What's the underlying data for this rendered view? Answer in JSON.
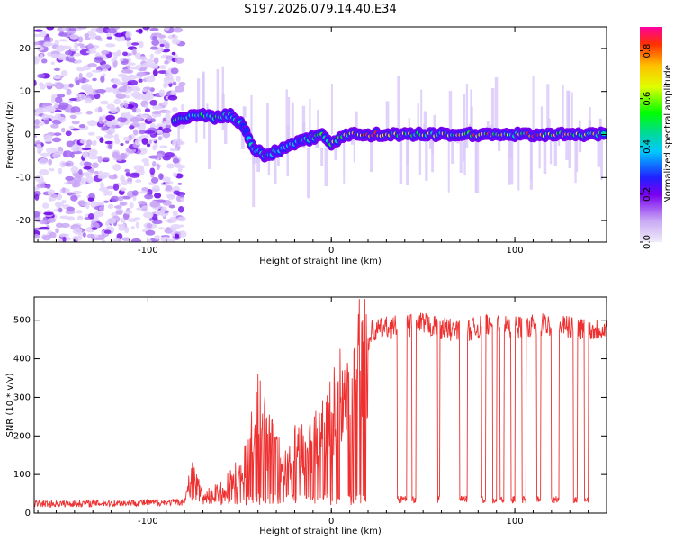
{
  "title": "S197.2026.079.14.40.E34",
  "chart_data": [
    {
      "type": "heatmap",
      "xlabel": "Height of straight line (km)",
      "ylabel": "Frequency (Hz)",
      "xlim": [
        -162,
        150
      ],
      "ylim": [
        -25,
        25
      ],
      "xticks": [
        -100,
        0,
        100
      ],
      "yticks": [
        -20,
        -10,
        0,
        10,
        20
      ],
      "colorbar": {
        "label": "Normalized spectral amplitude",
        "range": [
          0,
          0.9
        ],
        "ticks": [
          0,
          0.2,
          0.4,
          0.6,
          0.8
        ],
        "tick_labels": [
          "0.0",
          "0.2",
          "0.4",
          "0.6",
          "0.8"
        ],
        "stops": [
          "#e6dcf7",
          "#7a00f0",
          "#2020ff",
          "#00c8ff",
          "#00d8a0",
          "#00ff00",
          "#e0ff00",
          "#ffc000",
          "#ff3000",
          "#ff00a0"
        ]
      },
      "noise_region_x": [
        -162,
        -85
      ],
      "ridge": [
        {
          "x": -85,
          "f": 3,
          "amp": 0.5
        },
        {
          "x": -78,
          "f": 4,
          "amp": 0.45
        },
        {
          "x": -70,
          "f": 4.5,
          "amp": 0.55
        },
        {
          "x": -62,
          "f": 4,
          "amp": 0.5
        },
        {
          "x": -55,
          "f": 4.5,
          "amp": 0.45
        },
        {
          "x": -48,
          "f": 2,
          "amp": 0.35
        },
        {
          "x": -42,
          "f": -3.5,
          "amp": 0.4
        },
        {
          "x": -35,
          "f": -5,
          "amp": 0.4
        },
        {
          "x": -28,
          "f": -3.5,
          "amp": 0.4
        },
        {
          "x": -20,
          "f": -2,
          "amp": 0.4
        },
        {
          "x": -12,
          "f": -1,
          "amp": 0.4
        },
        {
          "x": -5,
          "f": 0,
          "amp": 0.5
        },
        {
          "x": 0,
          "f": -2,
          "amp": 0.55
        },
        {
          "x": 8,
          "f": 0,
          "amp": 0.55
        },
        {
          "x": 20,
          "f": 0,
          "amp": 0.8
        },
        {
          "x": 40,
          "f": 0,
          "amp": 0.6
        },
        {
          "x": 60,
          "f": 0,
          "amp": 0.6
        },
        {
          "x": 80,
          "f": 0,
          "amp": 0.75
        },
        {
          "x": 100,
          "f": 0,
          "amp": 0.6
        },
        {
          "x": 112,
          "f": 0,
          "amp": 0.8
        },
        {
          "x": 130,
          "f": 0,
          "amp": 0.6
        },
        {
          "x": 150,
          "f": 0,
          "amp": 0.6
        }
      ]
    },
    {
      "type": "line",
      "xlabel": "Height of straight line (km)",
      "ylabel": "SNR (10 * v/v)",
      "xlim": [
        -162,
        150
      ],
      "ylim": [
        0,
        560
      ],
      "xticks": [
        -100,
        0,
        100
      ],
      "yticks": [
        0,
        100,
        200,
        300,
        400,
        500
      ],
      "color": "#ee3030",
      "series": [
        {
          "name": "SNR",
          "x": [
            -162,
            -120,
            -80,
            -76,
            -70,
            -60,
            -50,
            -45,
            -40,
            -35,
            -30,
            -25,
            -20,
            -15,
            -10,
            -5,
            0,
            5,
            10,
            15,
            18,
            20,
            22,
            30,
            40,
            50,
            60,
            70,
            80,
            90,
            100,
            110,
            120,
            130,
            140,
            150
          ],
          "y": [
            20,
            22,
            25,
            110,
            40,
            60,
            100,
            170,
            250,
            200,
            150,
            120,
            160,
            170,
            190,
            200,
            260,
            300,
            340,
            400,
            460,
            440,
            470,
            480,
            485,
            490,
            480,
            470,
            480,
            490,
            480,
            485,
            490,
            480,
            475,
            480
          ]
        }
      ]
    }
  ]
}
